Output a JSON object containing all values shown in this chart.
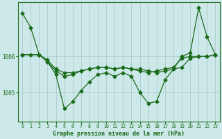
{
  "bg_color": "#cce8e8",
  "grid_color": "#b0d0d0",
  "line_color": "#1a6b1a",
  "title": "Graphe pression niveau de la mer (hPa)",
  "ylabel_values": [
    1005,
    1006
  ],
  "ylabel_labels": [
    "1005",
    "1006"
  ],
  "xlim": [
    -0.5,
    23.5
  ],
  "ylim": [
    1004.2,
    1007.5
  ],
  "x_ticks": [
    0,
    1,
    2,
    3,
    4,
    5,
    6,
    7,
    8,
    9,
    10,
    11,
    12,
    13,
    14,
    15,
    16,
    17,
    18,
    19,
    20,
    21,
    22,
    23
  ],
  "line1_x": [
    0,
    1,
    2,
    3,
    4,
    5,
    6,
    7,
    8,
    9,
    10,
    11,
    12,
    13,
    14,
    15,
    16,
    17,
    18,
    19,
    20,
    21,
    22,
    23
  ],
  "line1_y": [
    1007.2,
    1006.8,
    1006.05,
    1005.85,
    1005.5,
    1004.55,
    1004.75,
    1005.05,
    1005.3,
    1005.5,
    1005.55,
    1005.45,
    1005.55,
    1005.45,
    1005.0,
    1004.7,
    1004.75,
    1005.35,
    1005.65,
    1006.0,
    1006.1,
    1007.35,
    1006.55,
    1006.05
  ],
  "line2_x": [
    0,
    2,
    3,
    4,
    5,
    6,
    7,
    8,
    9,
    10,
    11,
    12,
    13,
    14,
    15,
    16,
    17,
    18,
    19,
    20,
    21,
    22,
    23
  ],
  "line2_y": [
    1006.05,
    1006.05,
    1005.9,
    1005.65,
    1005.55,
    1005.55,
    1005.6,
    1005.65,
    1005.7,
    1005.7,
    1005.65,
    1005.7,
    1005.65,
    1005.65,
    1005.6,
    1005.55,
    1005.6,
    1005.65,
    1005.7,
    1005.95,
    1006.0,
    1006.0,
    1006.05
  ],
  "line3_x": [
    0,
    1,
    2,
    3,
    4,
    5,
    6,
    7,
    8,
    9,
    10,
    11,
    12,
    13,
    14,
    15,
    16,
    17,
    18,
    19,
    20,
    21,
    22,
    23
  ],
  "line3_y": [
    1006.05,
    1006.05,
    1006.05,
    1005.85,
    1005.6,
    1005.45,
    1005.5,
    1005.6,
    1005.65,
    1005.7,
    1005.7,
    1005.65,
    1005.7,
    1005.65,
    1005.6,
    1005.55,
    1005.6,
    1005.65,
    1005.7,
    1005.95,
    1006.0,
    1006.0,
    1006.0,
    1006.05
  ]
}
